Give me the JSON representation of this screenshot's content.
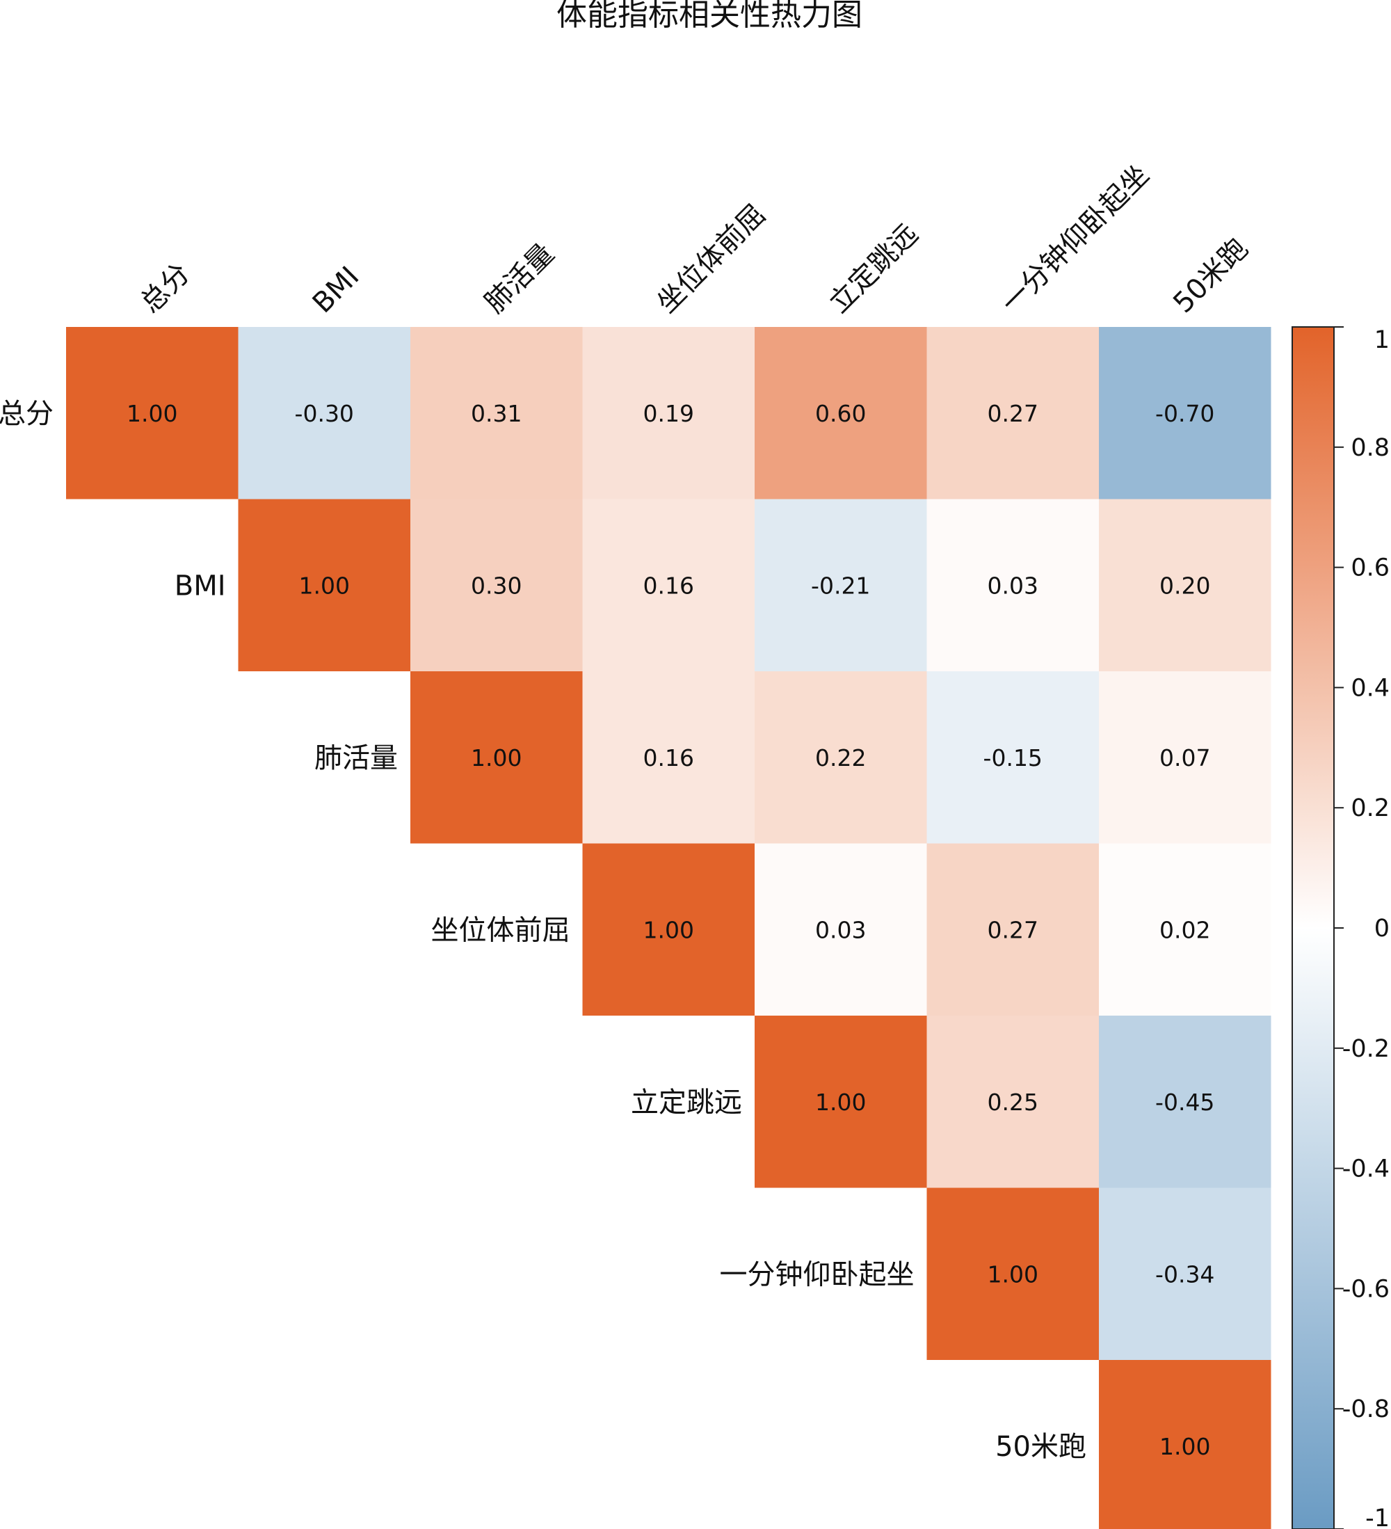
{
  "chart_data": {
    "type": "heatmap",
    "title": "体能指标相关性热力图",
    "variables": [
      "总分",
      "BMI",
      "肺活量",
      "坐位体前屈",
      "立定跳远",
      "一分钟仰卧起坐",
      "50米跑"
    ],
    "matrix": [
      [
        1.0,
        -0.3,
        0.31,
        0.19,
        0.6,
        0.27,
        -0.7
      ],
      [
        null,
        1.0,
        0.3,
        0.16,
        -0.21,
        0.03,
        0.2
      ],
      [
        null,
        null,
        1.0,
        0.16,
        0.22,
        -0.15,
        0.07
      ],
      [
        null,
        null,
        null,
        1.0,
        0.03,
        0.27,
        0.02
      ],
      [
        null,
        null,
        null,
        null,
        1.0,
        0.25,
        -0.45
      ],
      [
        null,
        null,
        null,
        null,
        null,
        1.0,
        -0.34
      ],
      [
        null,
        null,
        null,
        null,
        null,
        null,
        1.0
      ]
    ],
    "colorbar": {
      "min": -1,
      "max": 1,
      "ticks": [
        1,
        0.8,
        0.6,
        0.4,
        0.2,
        0,
        -0.2,
        -0.4,
        -0.6,
        -0.8,
        -1
      ],
      "tick_labels": [
        "1",
        "0.8",
        "0.6",
        "0.4",
        "0.2",
        "0",
        "-0.2",
        "-0.4",
        "-0.6",
        "-0.8",
        "-1"
      ],
      "positive_color": "#E2632A",
      "zero_color": "#FFFFFF",
      "negative_color": "#6A9BC3"
    },
    "shown_part": "upper-triangle",
    "value_format": "two decimals"
  }
}
